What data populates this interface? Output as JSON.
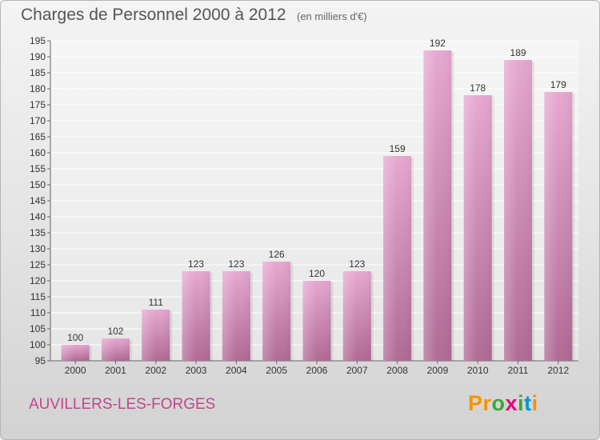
{
  "header": {
    "title": "Charges de Personnel 2000 à 2012",
    "subtitle": "(en milliers d'€)"
  },
  "footer": {
    "commune": "AUVILLERS-LES-FORGES",
    "brand": "Proxiti"
  },
  "colors": {
    "bar_top": "#e6a8d0",
    "bar_bottom": "#b06a95",
    "title": "#555555",
    "commune": "#c2458d",
    "brand_letters": [
      "#f29400",
      "#f29400",
      "#3aa935",
      "#e6007e",
      "#3aa935",
      "#0094d6",
      "#f29400"
    ]
  },
  "chart_data": {
    "type": "bar",
    "title": "Charges de Personnel 2000 à 2012",
    "subtitle": "(en milliers d'€)",
    "categories": [
      "2000",
      "2001",
      "2002",
      "2003",
      "2004",
      "2005",
      "2006",
      "2007",
      "2008",
      "2009",
      "2010",
      "2011",
      "2012"
    ],
    "values": [
      100,
      102,
      111,
      123,
      123,
      126,
      120,
      123,
      159,
      192,
      178,
      189,
      179
    ],
    "ylim": [
      95,
      195
    ],
    "yticks": [
      95,
      100,
      105,
      110,
      115,
      120,
      125,
      130,
      135,
      140,
      145,
      150,
      155,
      160,
      165,
      170,
      175,
      180,
      185,
      190,
      195
    ],
    "grid": true,
    "legend": "none",
    "xlabel": "",
    "ylabel": ""
  }
}
